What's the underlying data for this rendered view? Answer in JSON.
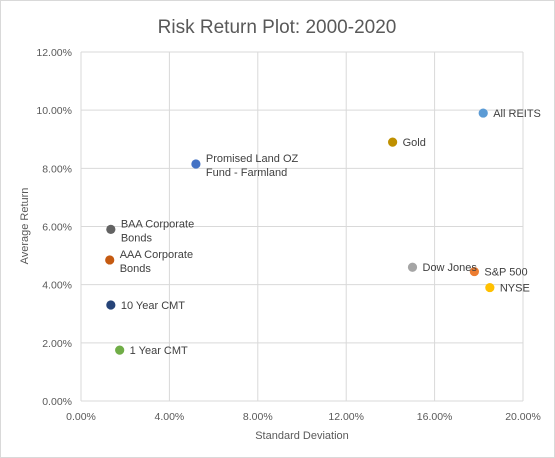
{
  "chart_data": {
    "type": "scatter",
    "title": "Risk Return Plot: 2000-2020",
    "xlabel": "Standard Deviation",
    "ylabel": "Average Return",
    "xlim": [
      0,
      20
    ],
    "ylim": [
      0,
      12
    ],
    "x_ticks": [
      "0.00%",
      "4.00%",
      "8.00%",
      "12.00%",
      "16.00%",
      "20.00%"
    ],
    "y_ticks": [
      "0.00%",
      "2.00%",
      "4.00%",
      "6.00%",
      "8.00%",
      "10.00%",
      "12.00%"
    ],
    "grid": true,
    "legend": "none",
    "points": [
      {
        "label": [
          "All REITS"
        ],
        "x": 18.2,
        "y": 9.9,
        "color": "#5b9bd5"
      },
      {
        "label": [
          "Gold"
        ],
        "x": 14.1,
        "y": 8.9,
        "color": "#bf9000"
      },
      {
        "label": [
          "Promised Land OZ",
          "Fund - Farmland"
        ],
        "x": 5.2,
        "y": 8.15,
        "color": "#4472c4"
      },
      {
        "label": [
          "BAA Corporate",
          "Bonds"
        ],
        "x": 1.35,
        "y": 5.9,
        "color": "#636363"
      },
      {
        "label": [
          "AAA Corporate",
          "Bonds"
        ],
        "x": 1.3,
        "y": 4.85,
        "color": "#c55a11"
      },
      {
        "label": [
          "Dow Jones"
        ],
        "x": 15.0,
        "y": 4.6,
        "color": "#a5a5a5"
      },
      {
        "label": [
          "S&P 500"
        ],
        "x": 17.8,
        "y": 4.45,
        "color": "#ed7d31"
      },
      {
        "label": [
          "NYSE"
        ],
        "x": 18.5,
        "y": 3.9,
        "color": "#ffc000"
      },
      {
        "label": [
          "10 Year CMT"
        ],
        "x": 1.35,
        "y": 3.3,
        "color": "#264478"
      },
      {
        "label": [
          "1 Year CMT"
        ],
        "x": 1.75,
        "y": 1.75,
        "color": "#70ad47"
      }
    ]
  }
}
